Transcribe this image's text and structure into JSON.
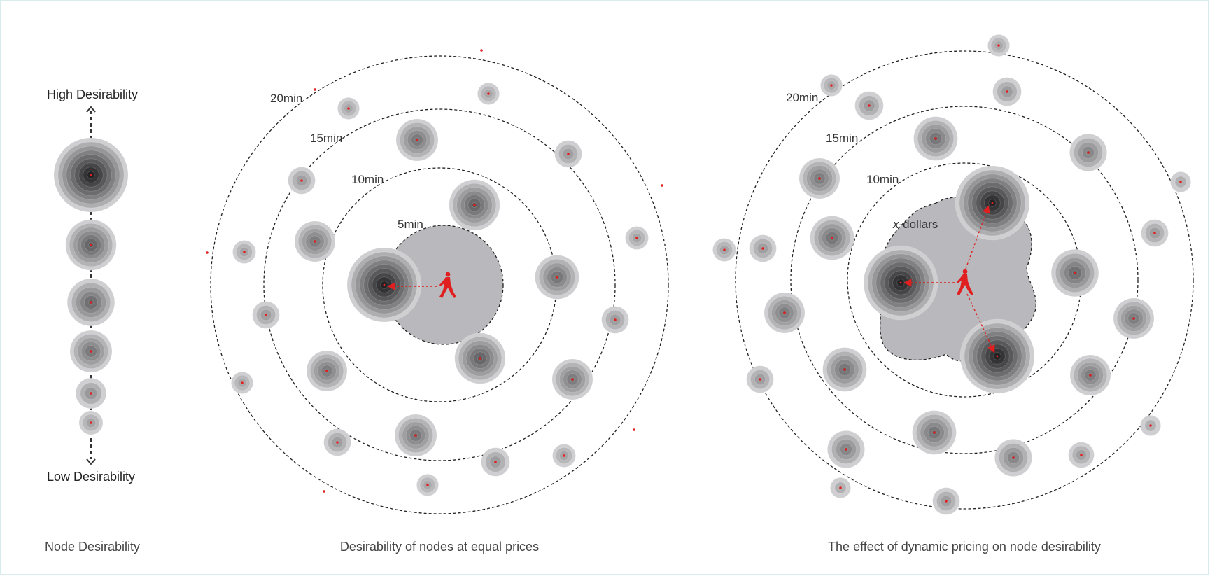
{
  "colors": {
    "accent": "#e02020",
    "ring": "#222222",
    "zone": "#b9b9bd"
  },
  "scale": {
    "top_label": "High Desirability",
    "bottom_label": "Low Desirability",
    "caption": "Node Desirability",
    "levels": [
      1.0,
      0.65,
      0.6,
      0.52,
      0.35,
      0.25
    ]
  },
  "panel_equal": {
    "caption": "Desirability of nodes at equal prices",
    "ring_labels": [
      "20min",
      "15min",
      "10min",
      "5min"
    ]
  },
  "panel_dynamic": {
    "caption": "The effect of dynamic pricing on node desirability",
    "ring_labels": [
      "20min",
      "15min",
      "10min"
    ],
    "zone_label_italic": "x",
    "zone_label_rest": "-dollars"
  },
  "icons": {
    "walker": "walking-person-icon",
    "node": "desirability-node-icon"
  }
}
